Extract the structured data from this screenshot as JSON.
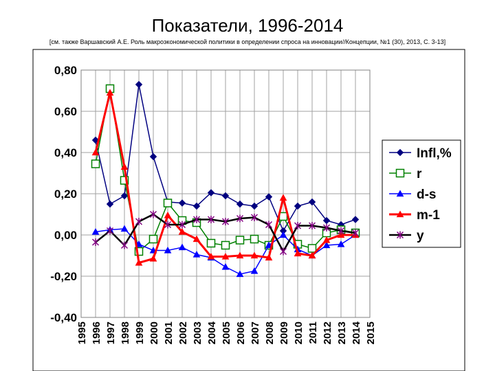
{
  "title": "Показатели, 1996-2014",
  "subtitle": "[см. также Варшавский А.Е. Роль макроэкономической политики в определении спроса на инновации//Концепции, №1 (30), 2013, С. 3-13]",
  "chart_data": {
    "type": "line",
    "title": "Показатели, 1996-2014",
    "categories": [
      "1995",
      "1996",
      "1997",
      "1998",
      "1999",
      "2000",
      "2001",
      "2002",
      "2003",
      "2004",
      "2005",
      "2006",
      "2007",
      "2008",
      "2009",
      "2010",
      "2011",
      "2012",
      "2013",
      "2014",
      "2015"
    ],
    "yticks": [
      "0,80",
      "0,60",
      "0,40",
      "0,20",
      "0,00",
      "-0,20",
      "-0,40"
    ],
    "ylim": [
      -0.4,
      0.8
    ],
    "grid": true,
    "legend_position": "right",
    "series": [
      {
        "name": "Infl,%",
        "color": "#000080",
        "marker": "diamond",
        "values": [
          null,
          0.46,
          0.15,
          0.19,
          0.73,
          0.38,
          0.16,
          0.155,
          0.14,
          0.205,
          0.19,
          0.15,
          0.14,
          0.185,
          0.02,
          0.14,
          0.16,
          0.07,
          0.05,
          0.075,
          null
        ]
      },
      {
        "name": "r",
        "color": "#008000",
        "marker": "square-open",
        "values": [
          null,
          0.345,
          0.71,
          0.265,
          -0.08,
          -0.02,
          0.155,
          0.07,
          0.06,
          -0.04,
          -0.05,
          -0.025,
          -0.02,
          -0.05,
          0.09,
          -0.045,
          -0.065,
          0.01,
          0.025,
          0.01,
          null
        ]
      },
      {
        "name": "d-s",
        "color": "#0000ff",
        "marker": "triangle",
        "values": [
          null,
          0.015,
          0.025,
          0.03,
          -0.045,
          -0.075,
          -0.075,
          -0.06,
          -0.095,
          -0.11,
          -0.155,
          -0.19,
          -0.175,
          -0.05,
          0.0,
          -0.07,
          -0.1,
          -0.05,
          -0.045,
          0.0,
          null
        ]
      },
      {
        "name": "m-1",
        "color": "#ff0000",
        "marker": "triangle",
        "values": [
          null,
          0.4,
          0.69,
          0.33,
          -0.135,
          -0.115,
          0.095,
          0.015,
          -0.02,
          -0.105,
          -0.105,
          -0.1,
          -0.1,
          -0.11,
          0.18,
          -0.09,
          -0.1,
          -0.025,
          0.0,
          0.0,
          null
        ]
      },
      {
        "name": "y",
        "color": "#000000",
        "marker": "star",
        "values": [
          null,
          -0.035,
          0.02,
          -0.05,
          0.065,
          0.1,
          0.05,
          0.05,
          0.075,
          0.075,
          0.065,
          0.08,
          0.085,
          0.05,
          -0.08,
          0.045,
          0.045,
          0.035,
          0.02,
          0.01,
          null
        ]
      }
    ]
  }
}
